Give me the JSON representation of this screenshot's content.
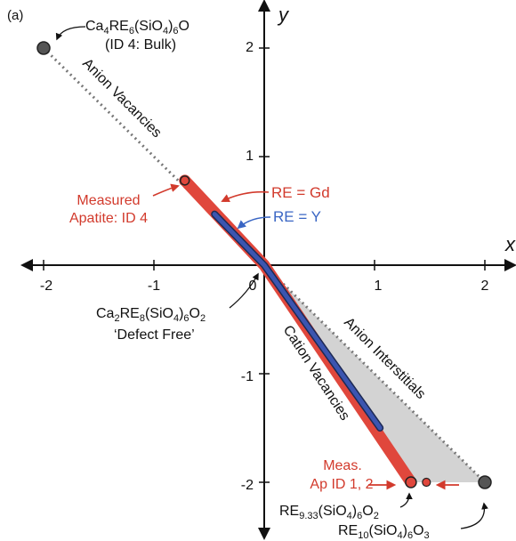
{
  "panel_label": "(a)",
  "axes": {
    "x_label": "x",
    "y_label": "y",
    "x_ticks": [
      "-2",
      "-1",
      "0",
      "1",
      "2"
    ],
    "y_ticks": [
      "-2",
      "-1",
      "1",
      "2"
    ]
  },
  "formulas": {
    "bulk_prefix": "Ca",
    "bulk_sub1": "4",
    "bulk_mid": "RE",
    "bulk_sub2": "6",
    "bulk_mid2": "(SiO",
    "bulk_sub3": "4",
    "bulk_mid3": ")",
    "bulk_sub4": "6",
    "bulk_end": "O",
    "bulk_id": "(ID 4: Bulk)",
    "df_prefix": "Ca",
    "df_sub1": "2",
    "df_mid": "RE",
    "df_sub2": "8",
    "df_mid2": "(SiO",
    "df_sub3": "4",
    "df_mid3": ")",
    "df_sub4": "6",
    "df_end": "O",
    "df_sub5": "2",
    "df_note": "‘Defect Free’",
    "re933_prefix": "RE",
    "re933_sub1": "9.33",
    "re933_mid": "(SiO",
    "re933_sub2": "4",
    "re933_mid2": ")",
    "re933_sub3": "6",
    "re933_end": "O",
    "re933_sub4": "2",
    "re10_prefix": "RE",
    "re10_sub1": "10",
    "re10_mid": "(SiO",
    "re10_sub2": "4",
    "re10_mid2": ")",
    "re10_sub3": "6",
    "re10_end": "O",
    "re10_sub4": "3"
  },
  "labels": {
    "anion_vacancies": "Anion Vacancies",
    "anion_interstitials": "Anion Interstitials",
    "cation_vacancies": "Cation Vacancies",
    "measured_line1": "Measured",
    "measured_line2": "Apatite: ID 4",
    "re_gd": "RE = Gd",
    "re_y": "RE = Y",
    "meas_line1": "Meas.",
    "meas_line2": "Ap ID 1, 2"
  },
  "diagram_data": {
    "points": {
      "bulk": [
        -2,
        2
      ],
      "defect_free": [
        0,
        0
      ],
      "re933": [
        1.33,
        -2
      ],
      "re10": [
        2,
        -2
      ],
      "measured_id4": [
        -0.72,
        0.78
      ],
      "measured_id12_a": [
        1.33,
        -2
      ],
      "measured_id12_b": [
        1.47,
        -2
      ]
    },
    "gd_line": [
      [
        -0.72,
        0.78
      ],
      [
        0,
        0
      ],
      [
        1.33,
        -2
      ]
    ],
    "y_line": [
      [
        -0.45,
        0.47
      ],
      [
        0,
        0
      ],
      [
        1.05,
        -1.5
      ]
    ],
    "shaded_triangle": [
      [
        0,
        0
      ],
      [
        2,
        -2
      ],
      [
        1.33,
        -2
      ]
    ],
    "colors": {
      "gd": "#e0473c",
      "gd_text": "#d23a2c",
      "y": "#3b55b0",
      "y_text": "#3a66c4",
      "shade": "#d3d3d3",
      "dotted": "#777777",
      "point": "#555555"
    }
  }
}
